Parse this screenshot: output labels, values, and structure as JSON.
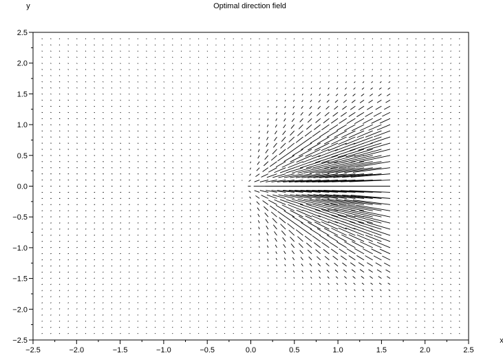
{
  "chart_data": {
    "type": "quiver",
    "title": "Optimal direction field",
    "xlabel": "x",
    "ylabel": "y",
    "xlim": [
      -2.5,
      2.5
    ],
    "ylim": [
      -2.5,
      2.5
    ],
    "x_ticks": [
      "−2.5",
      "−2.0",
      "−1.5",
      "−1.0",
      "−0.5",
      "0.0",
      "0.5",
      "1.0",
      "1.5",
      "2.0",
      "2.5"
    ],
    "y_ticks": [
      "−2.5",
      "−2.0",
      "−1.5",
      "−1.0",
      "−0.5",
      "0.0",
      "0.5",
      "1.0",
      "1.5",
      "2.0",
      "2.5"
    ],
    "grid": false,
    "field": {
      "x_range": [
        -2.4,
        2.4
      ],
      "y_range": [
        -2.4,
        2.4
      ],
      "step": 0.1,
      "source_point": [
        -0.1,
        0.0
      ],
      "extent_x": [
        -0.1,
        1.6
      ],
      "max_arrow_length": 0.5,
      "description_of_directions": "vectors point toward the source point at (-0.1, 0); magnitude largest along y=0 for 0<x<1.6 and decays with |y|"
    },
    "colors": {
      "arrow": "#000000",
      "axis": "#000000",
      "background": "#ffffff"
    }
  }
}
